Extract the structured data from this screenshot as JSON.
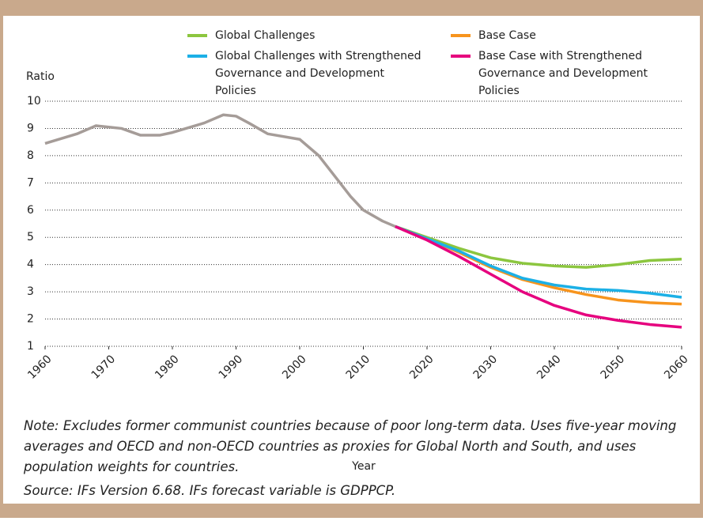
{
  "chart_data": {
    "type": "line",
    "y_label": "Ratio",
    "x_label": "Year",
    "x": [
      1960,
      1965,
      1968,
      1970,
      1972,
      1975,
      1978,
      1980,
      1985,
      1988,
      1990,
      1992,
      1995,
      2000,
      2003,
      2005,
      2008,
      2010,
      2013,
      2015,
      2020,
      2025,
      2030,
      2035,
      2040,
      2045,
      2050,
      2055,
      2060
    ],
    "history": {
      "color": "#a59c98",
      "values": [
        8.45,
        8.8,
        9.1,
        9.05,
        9.0,
        8.75,
        8.75,
        8.85,
        9.2,
        9.5,
        9.45,
        9.2,
        8.8,
        8.6,
        8.0,
        7.4,
        6.5,
        6.0,
        5.6,
        5.4,
        null,
        null,
        null,
        null,
        null,
        null,
        null,
        null,
        null
      ]
    },
    "series": [
      {
        "name": "Global Challenges",
        "color": "#8cc63f",
        "values": [
          null,
          null,
          null,
          null,
          null,
          null,
          null,
          null,
          null,
          null,
          null,
          null,
          null,
          null,
          null,
          null,
          null,
          null,
          null,
          5.4,
          5.0,
          4.6,
          4.25,
          4.05,
          3.95,
          3.9,
          4.0,
          4.15,
          4.2
        ]
      },
      {
        "name": "Base Case",
        "color": "#f7941d",
        "values": [
          null,
          null,
          null,
          null,
          null,
          null,
          null,
          null,
          null,
          null,
          null,
          null,
          null,
          null,
          null,
          null,
          null,
          null,
          null,
          5.4,
          4.95,
          4.45,
          3.9,
          3.45,
          3.15,
          2.9,
          2.7,
          2.6,
          2.55
        ]
      },
      {
        "name": "Global Challenges with Strengthened Governance and Development Policies",
        "color": "#1cb0e6",
        "values": [
          null,
          null,
          null,
          null,
          null,
          null,
          null,
          null,
          null,
          null,
          null,
          null,
          null,
          null,
          null,
          null,
          null,
          null,
          null,
          5.4,
          4.95,
          4.5,
          3.95,
          3.5,
          3.25,
          3.1,
          3.05,
          2.95,
          2.8
        ]
      },
      {
        "name": "Base Case with Strengthened Governance and Development Policies",
        "color": "#e6007e",
        "values": [
          null,
          null,
          null,
          null,
          null,
          null,
          null,
          null,
          null,
          null,
          null,
          null,
          null,
          null,
          null,
          null,
          null,
          null,
          null,
          5.4,
          4.9,
          4.3,
          3.65,
          3.0,
          2.5,
          2.15,
          1.95,
          1.8,
          1.7
        ]
      }
    ],
    "xlim": [
      1960,
      2060
    ],
    "xticks": [
      1960,
      1970,
      1980,
      1990,
      2000,
      2010,
      2020,
      2030,
      2040,
      2050,
      2060
    ],
    "ylim": [
      1,
      10
    ],
    "yticks": [
      1,
      2,
      3,
      4,
      5,
      6,
      7,
      8,
      9,
      10
    ],
    "grid": true
  },
  "note": "Note: Excludes former communist countries because of poor long-term data. Uses five-year moving averages and OECD and non-OECD countries as proxies for Global North and South, and uses population weights for countries.",
  "source": "Source: IFs Version 6.68. IFs forecast variable is GDPPCP."
}
